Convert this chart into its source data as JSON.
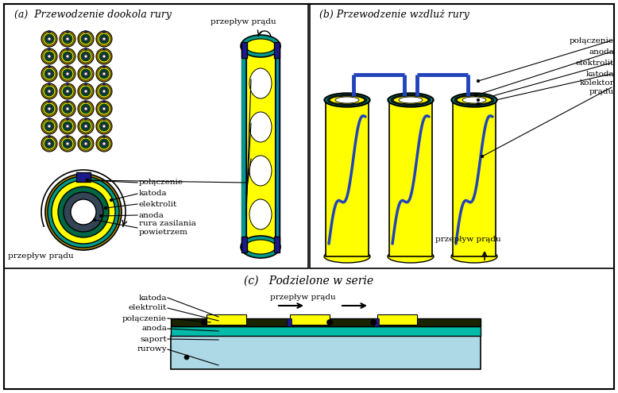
{
  "title_a": "(a)  Przewodzenie dookola rury",
  "title_b": "(b) Przewodzenie wzdluż rury",
  "title_c": "(c)   Podzielone w serie",
  "label_przeplyw": "przepływ prądu",
  "labels_a": [
    "połączenie",
    "katoda",
    "elektrolit",
    "anoda",
    "rura zasilania\npowietrzem"
  ],
  "labels_b": [
    "połączenie",
    "anoda",
    "elektrolit",
    "katoda",
    "kolektor\nprądu"
  ],
  "label_przeplyw_b": "przepływ prądu",
  "labels_c": [
    "katoda",
    "elektrolit",
    "połączenie",
    "anoda",
    "saport",
    "rurowy"
  ],
  "color_yellow": "#FFFF00",
  "color_navy": "#1A1A8C",
  "color_teal": "#009988",
  "color_green_dark": "#006644",
  "color_olive": "#556600",
  "color_lightblue": "#ADD8E6",
  "color_cyan_light": "#88DDCC",
  "color_white": "#FFFFFF",
  "color_black": "#000000",
  "color_blue_conn": "#2233AA",
  "color_green_mid": "#008855"
}
